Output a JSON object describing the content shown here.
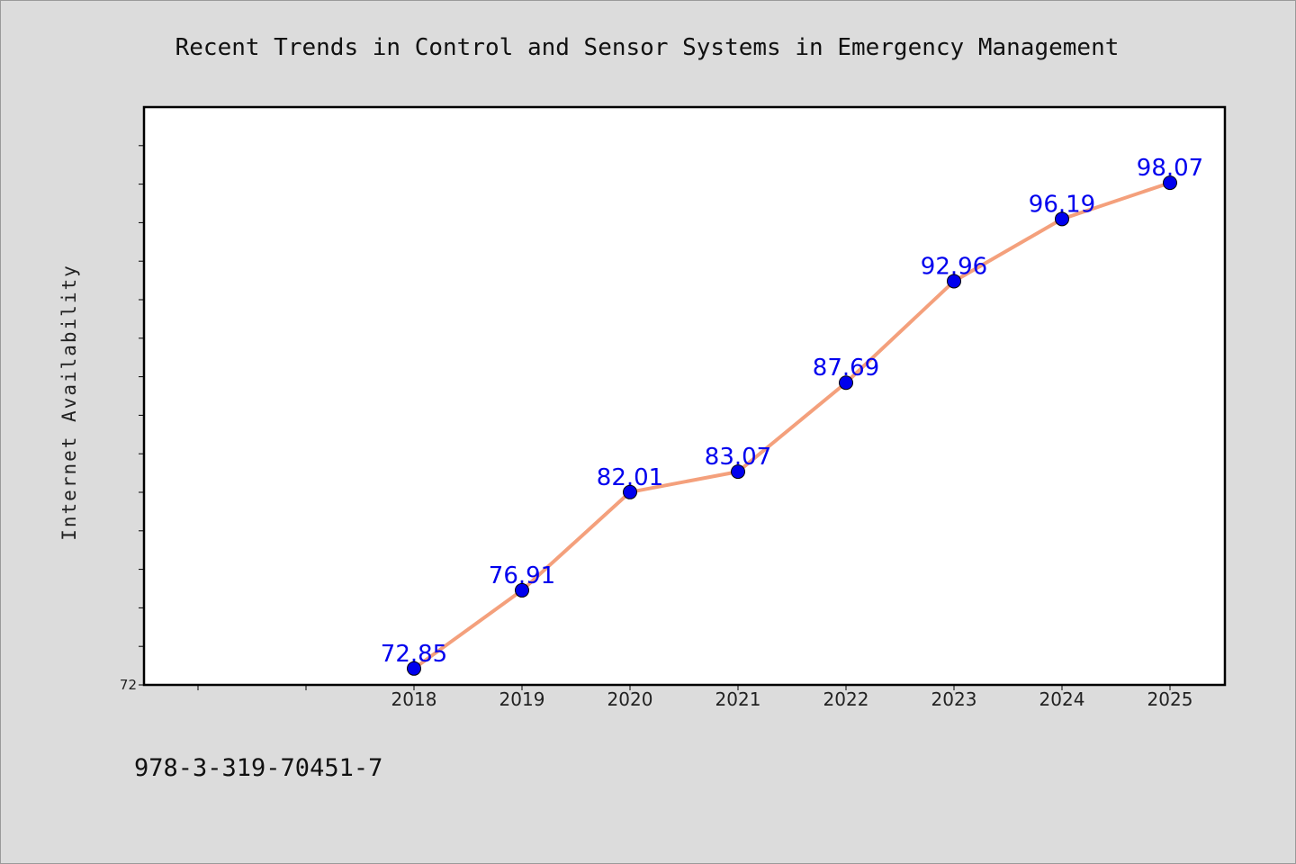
{
  "chart_data": {
    "type": "line",
    "title": "Recent Trends in Control and Sensor Systems in Emergency Management",
    "xlabel": "",
    "ylabel": "Internet Availability",
    "categories": [
      "2018",
      "2019",
      "2020",
      "2021",
      "2022",
      "2023",
      "2024",
      "2025"
    ],
    "series": [
      {
        "values": [
          72.85,
          76.91,
          82.01,
          83.07,
          87.69,
          92.96,
          96.19,
          98.07
        ],
        "labels": [
          "72.85",
          "76.91",
          "82.01",
          "83.07",
          "87.69",
          "92.96",
          "96.19",
          "98.07"
        ]
      }
    ],
    "ylim": [
      72,
      102
    ],
    "y_tick_labels": [
      "72"
    ],
    "grid": false,
    "line_color": "#f4a07c",
    "marker_color": "#0000ee",
    "label_color": "#0000ee"
  },
  "footer": {
    "isbn": "978-3-319-70451-7"
  }
}
